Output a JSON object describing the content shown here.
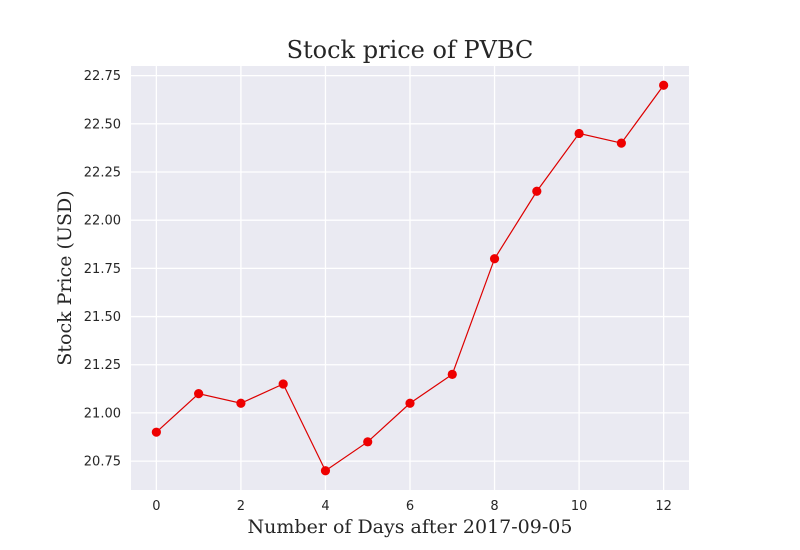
{
  "chart_data": {
    "type": "line",
    "title": "Stock price of PVBC",
    "xlabel": "Number of Days after 2017-09-05",
    "ylabel": "Stock Price (USD)",
    "x": [
      0,
      1,
      2,
      3,
      4,
      5,
      6,
      7,
      8,
      9,
      10,
      11,
      12
    ],
    "series": [
      {
        "values": [
          20.9,
          21.1,
          21.05,
          21.15,
          20.7,
          20.85,
          21.05,
          21.2,
          21.8,
          22.15,
          22.45,
          22.4,
          22.7
        ]
      }
    ],
    "xlim": [
      -0.6,
      12.6
    ],
    "ylim": [
      20.6,
      22.8
    ],
    "xticks": [
      0,
      2,
      4,
      6,
      8,
      10,
      12
    ],
    "xtick_labels": [
      "0",
      "2",
      "4",
      "6",
      "8",
      "10",
      "12"
    ],
    "yticks": [
      20.75,
      21.0,
      21.25,
      21.5,
      21.75,
      22.0,
      22.25,
      22.5,
      22.75
    ],
    "ytick_labels": [
      "20.75",
      "21.00",
      "21.25",
      "21.50",
      "21.75",
      "22.00",
      "22.25",
      "22.50",
      "22.75"
    ],
    "grid": true,
    "colors": {
      "line": "#dd0000",
      "marker": "#ee0000",
      "plot_bg": "#eaeaf2",
      "grid": "#ffffff"
    }
  }
}
